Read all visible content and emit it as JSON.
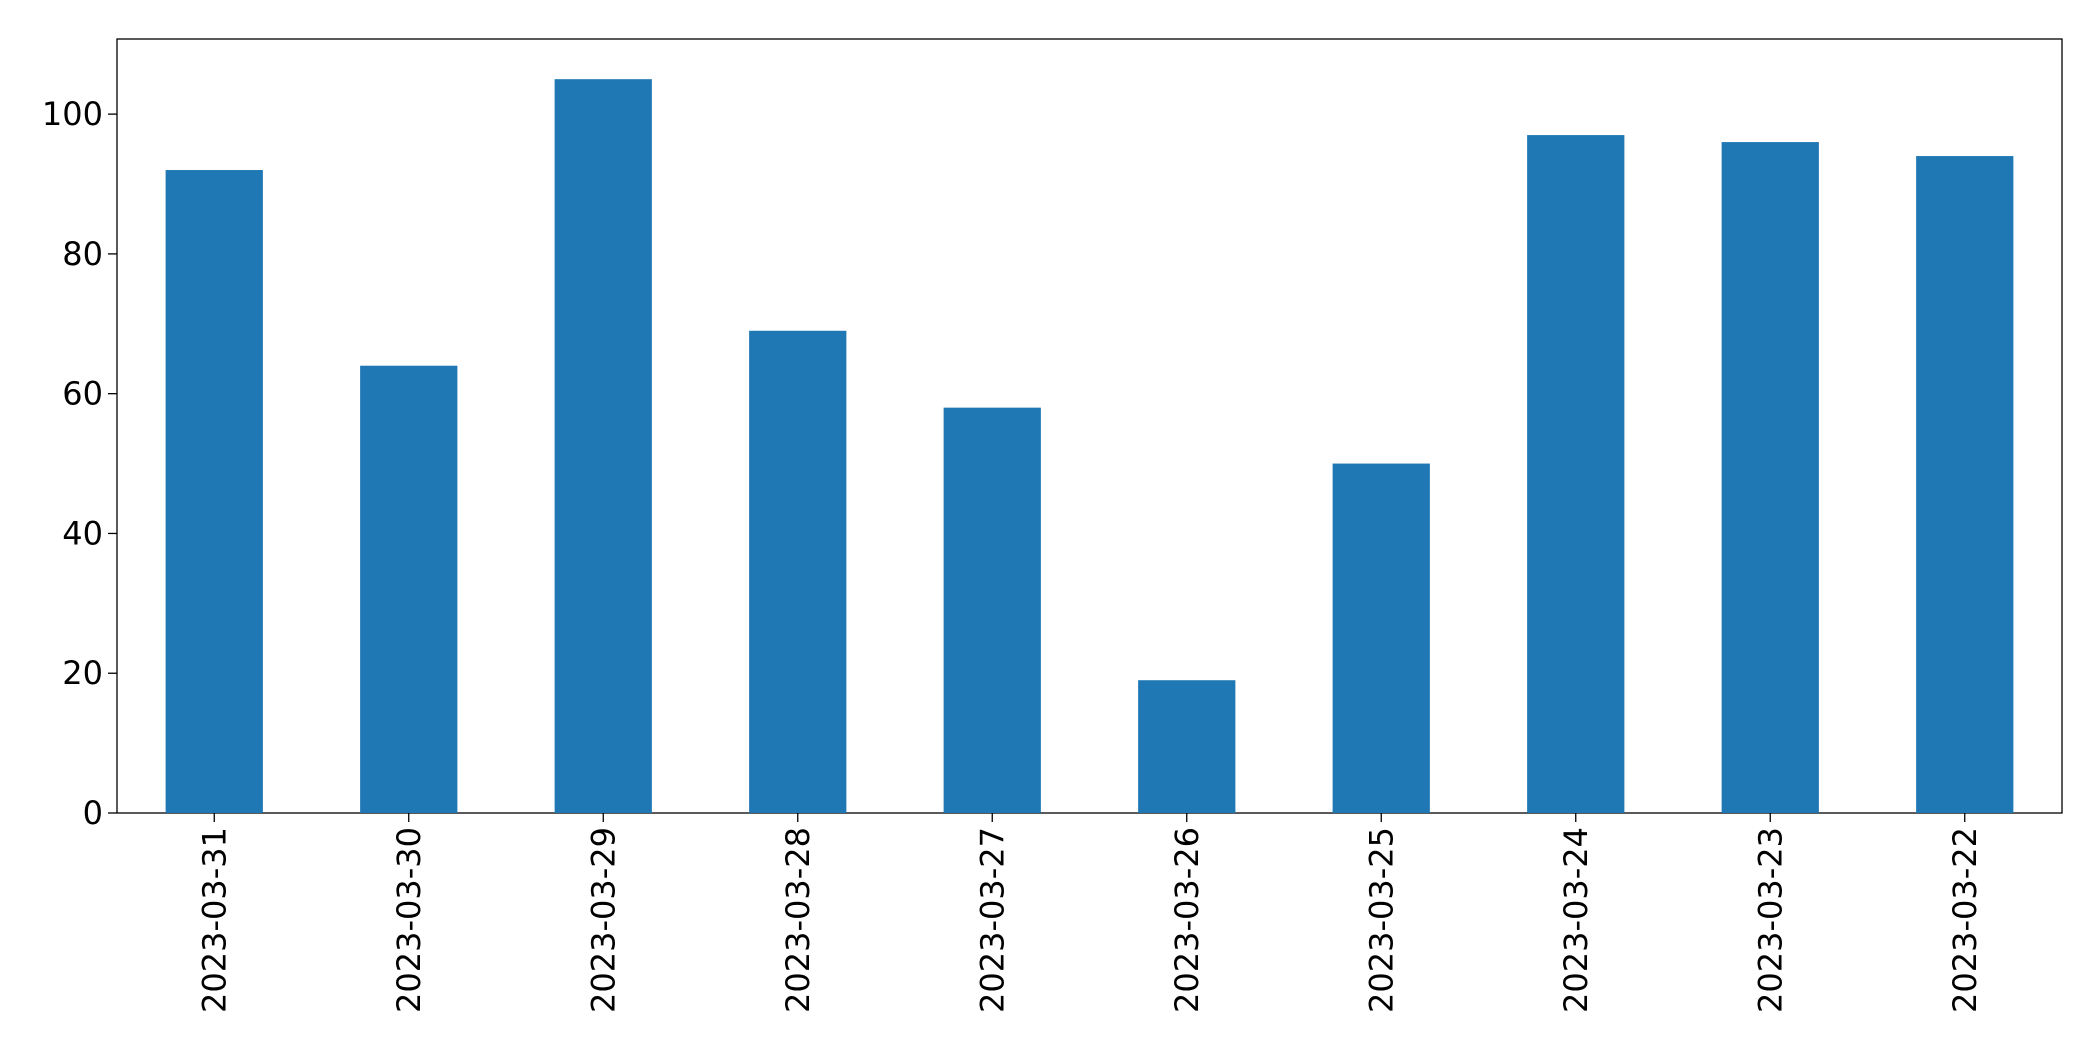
{
  "chart_data": {
    "type": "bar",
    "categories": [
      "2023-03-31",
      "2023-03-30",
      "2023-03-29",
      "2023-03-28",
      "2023-03-27",
      "2023-03-26",
      "2023-03-25",
      "2023-03-24",
      "2023-03-23",
      "2023-03-22"
    ],
    "values": [
      92,
      64,
      105,
      69,
      58,
      19,
      50,
      97,
      96,
      94
    ],
    "color": "#1f77b4",
    "ylim": [
      0,
      110.75
    ],
    "yticks": [
      0,
      20,
      40,
      60,
      80,
      100
    ],
    "grid": false
  }
}
